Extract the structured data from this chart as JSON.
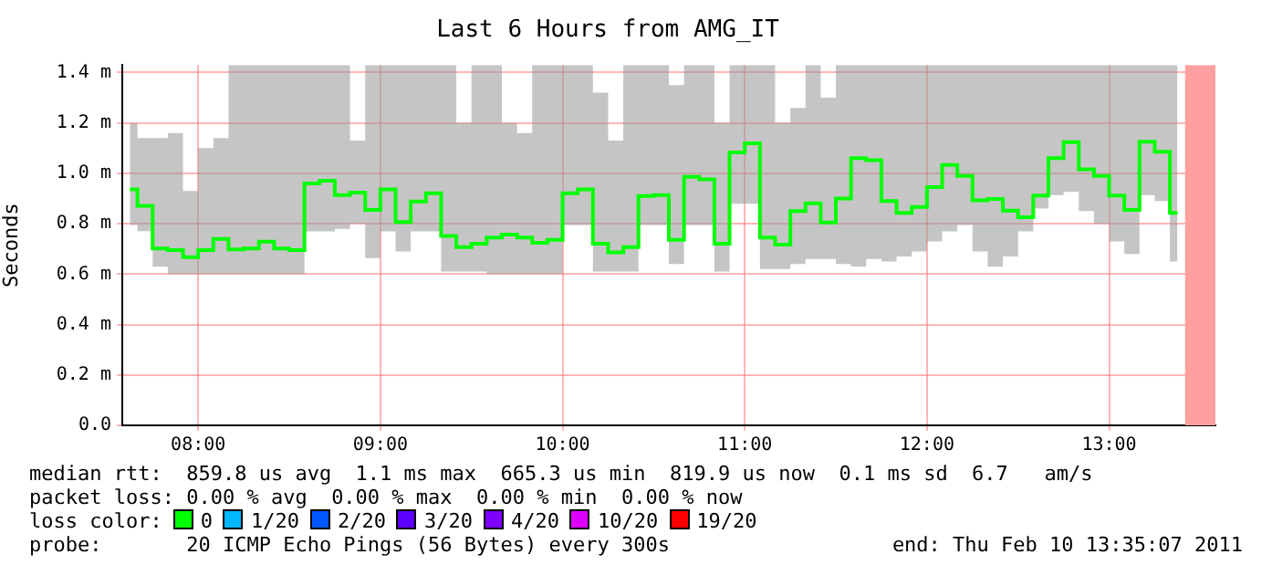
{
  "chart_data": {
    "type": "step",
    "title": "Last 6 Hours from AMG_IT",
    "ylabel": "Seconds",
    "legend_title": "loss color:",
    "legend": "bottom",
    "grid": true,
    "x": [
      7.625,
      7.7083,
      7.7917,
      7.875,
      7.9583,
      8.0417,
      8.125,
      8.2083,
      8.2917,
      8.375,
      8.4583,
      8.5417,
      8.625,
      8.7083,
      8.7917,
      8.875,
      8.9583,
      9.0417,
      9.125,
      9.2083,
      9.2917,
      9.375,
      9.4583,
      9.5417,
      9.625,
      9.7083,
      9.7917,
      9.875,
      9.9583,
      10.0417,
      10.125,
      10.2083,
      10.2917,
      10.375,
      10.4583,
      10.5417,
      10.625,
      10.7083,
      10.7917,
      10.875,
      10.9583,
      11.0417,
      11.125,
      11.2083,
      11.2917,
      11.375,
      11.4583,
      11.5417,
      11.625,
      11.7083,
      11.7917,
      11.875,
      11.9583,
      12.0417,
      12.125,
      12.2083,
      12.2917,
      12.375,
      12.4583,
      12.5417,
      12.625,
      12.7083,
      12.7917,
      12.875,
      12.9583,
      13.0417,
      13.125,
      13.2083,
      13.2917,
      13.375
    ],
    "xlim": [
      7.5833,
      13.5833
    ],
    "xticks": [
      {
        "value": 8,
        "label": "08:00"
      },
      {
        "value": 9,
        "label": "09:00"
      },
      {
        "value": 10,
        "label": "10:00"
      },
      {
        "value": 11,
        "label": "11:00"
      },
      {
        "value": 12,
        "label": "12:00"
      },
      {
        "value": 13,
        "label": "13:00"
      }
    ],
    "ylim": [
      0,
      1.43
    ],
    "yticks": [
      {
        "value": 0,
        "label": "0.0"
      },
      {
        "value": 0.2,
        "label": "0.2 m"
      },
      {
        "value": 0.4,
        "label": "0.4 m"
      },
      {
        "value": 0.6,
        "label": "0.6 m"
      },
      {
        "value": 0.8,
        "label": "0.8 m"
      },
      {
        "value": 1,
        "label": "1.0 m"
      },
      {
        "value": 1.2,
        "label": "1.2 m"
      },
      {
        "value": 1.4,
        "label": "1.4 m"
      }
    ],
    "series": [
      {
        "name": "0",
        "color": "#00ff00",
        "values": [
          0.936,
          0.871,
          0.702,
          0.695,
          0.667,
          0.695,
          0.74,
          0.698,
          0.702,
          0.729,
          0.702,
          0.695,
          0.96,
          0.971,
          0.914,
          0.924,
          0.855,
          0.936,
          0.807,
          0.888,
          0.921,
          0.752,
          0.707,
          0.721,
          0.745,
          0.757,
          0.745,
          0.724,
          0.736,
          0.921,
          0.936,
          0.721,
          0.686,
          0.707,
          0.91,
          0.914,
          0.736,
          0.986,
          0.976,
          0.721,
          1.083,
          1.119,
          0.745,
          0.717,
          0.85,
          0.881,
          0.805,
          0.9,
          1.06,
          1.052,
          0.89,
          0.843,
          0.867,
          0.945,
          1.033,
          0.99,
          0.893,
          0.898,
          0.852,
          0.826,
          0.912,
          1.06,
          1.124,
          1.016,
          0.99,
          0.912,
          0.855,
          1.126,
          1.086,
          0.843
        ],
        "lower": [
          0.795,
          0.771,
          0.629,
          0.6,
          0.6,
          0.6,
          0.6,
          0.6,
          0.6,
          0.6,
          0.6,
          0.6,
          0.77,
          0.77,
          0.78,
          0.8,
          0.664,
          0.77,
          0.69,
          0.77,
          0.77,
          0.61,
          0.61,
          0.61,
          0.6,
          0.6,
          0.6,
          0.6,
          0.6,
          0.795,
          0.795,
          0.61,
          0.61,
          0.61,
          0.795,
          0.795,
          0.64,
          0.795,
          0.795,
          0.61,
          0.879,
          0.879,
          0.62,
          0.62,
          0.64,
          0.66,
          0.66,
          0.64,
          0.63,
          0.66,
          0.65,
          0.67,
          0.69,
          0.73,
          0.77,
          0.795,
          0.69,
          0.63,
          0.67,
          0.77,
          0.86,
          0.914,
          0.926,
          0.85,
          0.8,
          0.73,
          0.68,
          0.914,
          0.89,
          0.65
        ],
        "upper": [
          1.2,
          1.14,
          1.14,
          1.16,
          0.93,
          1.1,
          1.14,
          1.43,
          1.43,
          1.43,
          1.43,
          1.43,
          1.43,
          1.43,
          1.43,
          1.13,
          1.43,
          1.43,
          1.43,
          1.43,
          1.43,
          1.43,
          1.2,
          1.43,
          1.43,
          1.2,
          1.16,
          1.43,
          1.43,
          1.43,
          1.43,
          1.32,
          1.13,
          1.43,
          1.43,
          1.43,
          1.35,
          1.43,
          1.43,
          1.2,
          1.43,
          1.43,
          1.43,
          1.2,
          1.26,
          1.43,
          1.3,
          1.43,
          1.43,
          1.43,
          1.43,
          1.43,
          1.43,
          1.43,
          1.43,
          1.43,
          1.43,
          1.43,
          1.43,
          1.43,
          1.43,
          1.43,
          1.43,
          1.43,
          1.43,
          1.43,
          1.43,
          1.43,
          1.43,
          1.43
        ]
      },
      {
        "name": "1/20",
        "color": "#00b8ff",
        "values": [
          null,
          null,
          null,
          null,
          null,
          null,
          null,
          null,
          null,
          null,
          null,
          null,
          null,
          null,
          null,
          null,
          null,
          null,
          null,
          null,
          null,
          null,
          null,
          null,
          null,
          null,
          null,
          null,
          null,
          null,
          null,
          null,
          null,
          null,
          null,
          null,
          null,
          null,
          null,
          null,
          null,
          null,
          null,
          null,
          null,
          null,
          null,
          null,
          null,
          null,
          null,
          null,
          null,
          null,
          null,
          null,
          null,
          null,
          null,
          null,
          null,
          null,
          null,
          null,
          null,
          null,
          null,
          null,
          null,
          null
        ]
      },
      {
        "name": "2/20",
        "color": "#0059ff",
        "values": [
          null,
          null,
          null,
          null,
          null,
          null,
          null,
          null,
          null,
          null,
          null,
          null,
          null,
          null,
          null,
          null,
          null,
          null,
          null,
          null,
          null,
          null,
          null,
          null,
          null,
          null,
          null,
          null,
          null,
          null,
          null,
          null,
          null,
          null,
          null,
          null,
          null,
          null,
          null,
          null,
          null,
          null,
          null,
          null,
          null,
          null,
          null,
          null,
          null,
          null,
          null,
          null,
          null,
          null,
          null,
          null,
          null,
          null,
          null,
          null,
          null,
          null,
          null,
          null,
          null,
          null,
          null,
          null,
          null,
          null
        ]
      },
      {
        "name": "3/20",
        "color": "#5e00ff",
        "values": [
          null,
          null,
          null,
          null,
          null,
          null,
          null,
          null,
          null,
          null,
          null,
          null,
          null,
          null,
          null,
          null,
          null,
          null,
          null,
          null,
          null,
          null,
          null,
          null,
          null,
          null,
          null,
          null,
          null,
          null,
          null,
          null,
          null,
          null,
          null,
          null,
          null,
          null,
          null,
          null,
          null,
          null,
          null,
          null,
          null,
          null,
          null,
          null,
          null,
          null,
          null,
          null,
          null,
          null,
          null,
          null,
          null,
          null,
          null,
          null,
          null,
          null,
          null,
          null,
          null,
          null,
          null,
          null,
          null,
          null
        ]
      },
      {
        "name": "4/20",
        "color": "#7e00ff",
        "values": [
          null,
          null,
          null,
          null,
          null,
          null,
          null,
          null,
          null,
          null,
          null,
          null,
          null,
          null,
          null,
          null,
          null,
          null,
          null,
          null,
          null,
          null,
          null,
          null,
          null,
          null,
          null,
          null,
          null,
          null,
          null,
          null,
          null,
          null,
          null,
          null,
          null,
          null,
          null,
          null,
          null,
          null,
          null,
          null,
          null,
          null,
          null,
          null,
          null,
          null,
          null,
          null,
          null,
          null,
          null,
          null,
          null,
          null,
          null,
          null,
          null,
          null,
          null,
          null,
          null,
          null,
          null,
          null,
          null,
          null
        ]
      },
      {
        "name": "10/20",
        "color": "#dd00ff",
        "values": [
          null,
          null,
          null,
          null,
          null,
          null,
          null,
          null,
          null,
          null,
          null,
          null,
          null,
          null,
          null,
          null,
          null,
          null,
          null,
          null,
          null,
          null,
          null,
          null,
          null,
          null,
          null,
          null,
          null,
          null,
          null,
          null,
          null,
          null,
          null,
          null,
          null,
          null,
          null,
          null,
          null,
          null,
          null,
          null,
          null,
          null,
          null,
          null,
          null,
          null,
          null,
          null,
          null,
          null,
          null,
          null,
          null,
          null,
          null,
          null,
          null,
          null,
          null,
          null,
          null,
          null,
          null,
          null,
          null,
          null
        ]
      },
      {
        "name": "19/20",
        "color": "#ff0000",
        "values": [
          null,
          null,
          null,
          null,
          null,
          null,
          null,
          null,
          null,
          null,
          null,
          null,
          null,
          null,
          null,
          null,
          null,
          null,
          null,
          null,
          null,
          null,
          null,
          null,
          null,
          null,
          null,
          null,
          null,
          null,
          null,
          null,
          null,
          null,
          null,
          null,
          null,
          null,
          null,
          null,
          null,
          null,
          null,
          null,
          null,
          null,
          null,
          null,
          null,
          null,
          null,
          null,
          null,
          null,
          null,
          null,
          null,
          null,
          null,
          null,
          null,
          null,
          null,
          null,
          null,
          null,
          null,
          null,
          null,
          null
        ]
      }
    ],
    "bands": [
      {
        "axis": "x",
        "from": 13.4167,
        "to": 13.5833,
        "label": null,
        "color": "#ffa0a0"
      }
    ],
    "annotations": [
      "median rtt:  859.8 us avg  1.1 ms max  665.3 us min  819.9 us now  0.1 ms sd  6.7   am/s",
      "packet loss: 0.00 % avg  0.00 % max  0.00 % min  0.00 % now",
      "probe:       20 ICMP Echo Pings (56 Bytes) every 300s",
      "end: Thu Feb 10 13:35:07 2011"
    ]
  }
}
